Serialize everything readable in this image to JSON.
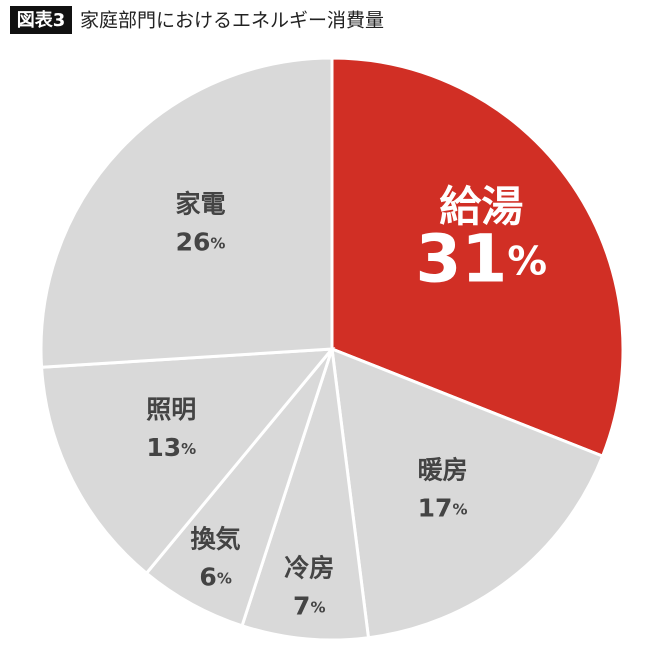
{
  "chart_data": {
    "type": "pie",
    "label": "図表3",
    "title": "家庭部門におけるエネルギー消費量",
    "categories": [
      "給湯",
      "暖房",
      "冷房",
      "換気",
      "照明",
      "家電"
    ],
    "values": [
      31,
      17,
      7,
      6,
      13,
      26
    ],
    "value_labels": [
      "31%",
      "17%",
      "7%",
      "6%",
      "13%",
      "26%"
    ],
    "colors": [
      "#d12f25",
      "#d9d9d9",
      "#d9d9d9",
      "#d9d9d9",
      "#d9d9d9",
      "#d9d9d9"
    ]
  }
}
